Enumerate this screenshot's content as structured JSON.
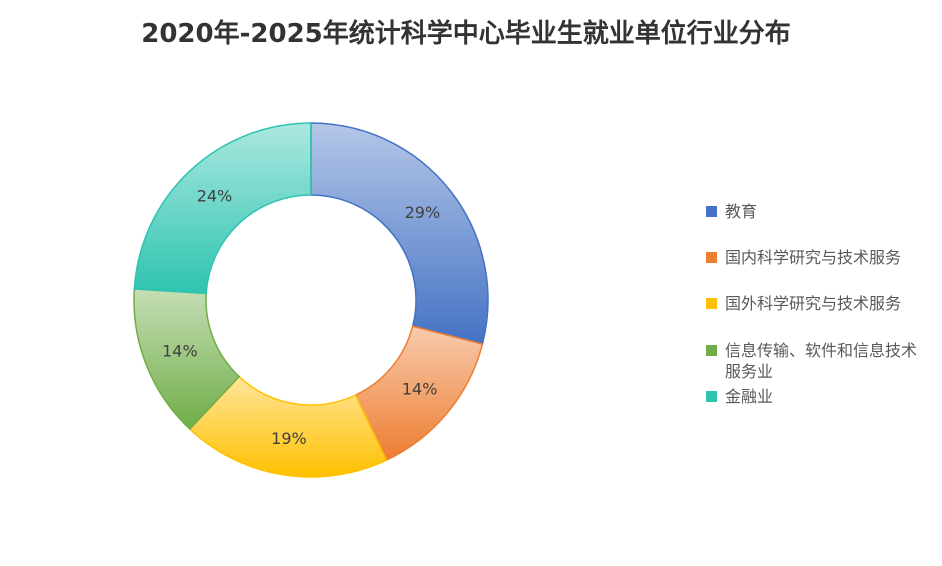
{
  "chart_data": {
    "type": "donut",
    "title": "2020年-2025年统计科学中心毕业生就业单位行业分布",
    "categories": [
      "教育",
      "国内科学研究与技术服务",
      "国外科学研究与技术服务",
      "信息传输、软件和信息技术服务业",
      "金融业"
    ],
    "values": [
      29,
      14,
      19,
      14,
      24
    ],
    "value_labels": [
      "29%",
      "14%",
      "19%",
      "14%",
      "24%"
    ],
    "colors": [
      "#4472c4",
      "#ed7d31",
      "#ffc000",
      "#70ad47",
      "#2ec4b0"
    ],
    "legend": "right"
  }
}
